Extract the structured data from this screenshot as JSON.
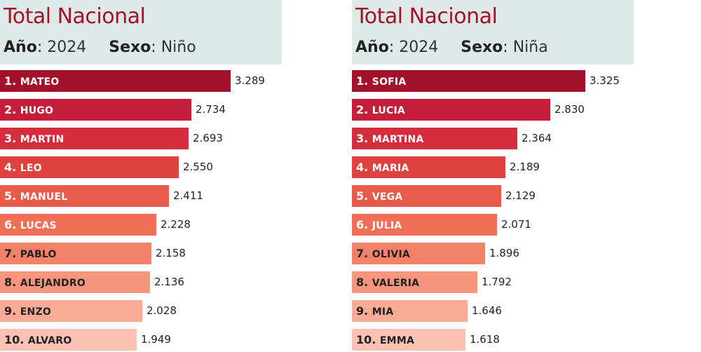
{
  "chart_data": [
    {
      "type": "bar",
      "orientation": "horizontal",
      "title": "Total Nacional",
      "filters": [
        {
          "label": "Año",
          "value": "2024"
        },
        {
          "label": "Sexo",
          "value": "Niño"
        }
      ],
      "ranks": [
        "1.",
        "2.",
        "3.",
        "4.",
        "5.",
        "6.",
        "7.",
        "8.",
        "9.",
        "10."
      ],
      "categories": [
        "MATEO",
        "HUGO",
        "MARTIN",
        "LEO",
        "MANUEL",
        "LUCAS",
        "PABLO",
        "ALEJANDRO",
        "ENZO",
        "ALVARO"
      ],
      "values": [
        3289,
        2734,
        2693,
        2550,
        2411,
        2228,
        2158,
        2136,
        2028,
        1949
      ],
      "value_labels": [
        "3.289",
        "2.734",
        "2.693",
        "2.550",
        "2.411",
        "2.228",
        "2.158",
        "2.136",
        "2.028",
        "1.949"
      ]
    },
    {
      "type": "bar",
      "orientation": "horizontal",
      "title": "Total Nacional",
      "filters": [
        {
          "label": "Año",
          "value": "2024"
        },
        {
          "label": "Sexo",
          "value": "Niña"
        }
      ],
      "ranks": [
        "1.",
        "2.",
        "3.",
        "4.",
        "5.",
        "6.",
        "7.",
        "8.",
        "9.",
        "10."
      ],
      "categories": [
        "SOFIA",
        "LUCIA",
        "MARTINA",
        "MARIA",
        "VEGA",
        "JULIA",
        "OLIVIA",
        "VALERIA",
        "MIA",
        "EMMA"
      ],
      "values": [
        3325,
        2830,
        2364,
        2189,
        2129,
        2071,
        1896,
        1792,
        1646,
        1618
      ],
      "value_labels": [
        "3.325",
        "2.830",
        "2.364",
        "2.189",
        "2.129",
        "2.071",
        "1.896",
        "1.792",
        "1.646",
        "1.618"
      ]
    }
  ],
  "colors": {
    "header_bg": "#dde9e7",
    "title": "#a3122b",
    "bar_palette": [
      "#a3122b",
      "#c41e3a",
      "#d42d3d",
      "#e0423f",
      "#e85a49",
      "#ef6f58",
      "#f48268",
      "#f7967e",
      "#f9ab96",
      "#fbc2b3"
    ],
    "light_text": "#ffffff",
    "dark_text": "#222222"
  }
}
